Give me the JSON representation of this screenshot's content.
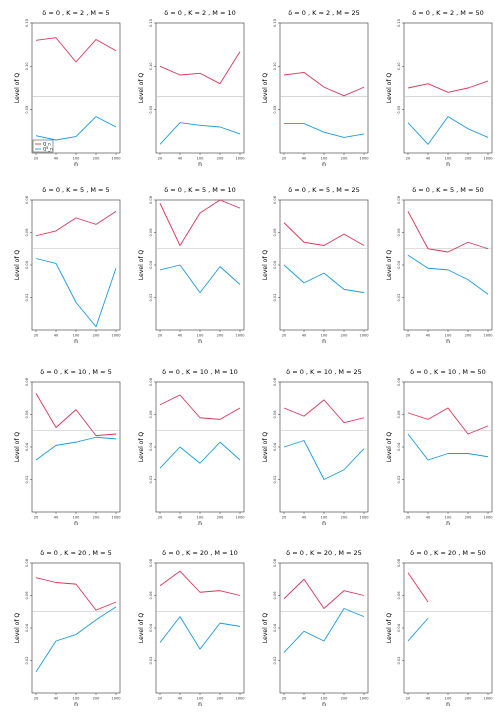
{
  "colors": {
    "Q_n": "#d8375a",
    "Q_n_star": "#1d9bdc",
    "reference": "#bdbdbd",
    "axis": "#333333"
  },
  "legend": {
    "entries": [
      "Q_n",
      "Q*_n"
    ]
  },
  "chart_data": [
    {
      "type": "line",
      "title": "δ = 0 , K = 2 , M = 5",
      "xlabel": "n",
      "ylabel": "Level of Q",
      "x": [
        20,
        40,
        100,
        200,
        1000
      ],
      "xticks": [
        "20",
        "40",
        "100",
        "200",
        "1000"
      ],
      "ylim": [
        0.0,
        0.15
      ],
      "yticks": [
        "0.05",
        "0.10",
        "0.15"
      ],
      "reference": 0.065,
      "series": [
        {
          "name": "Q_n",
          "values": [
            0.13,
            0.133,
            0.105,
            0.131,
            0.118
          ]
        },
        {
          "name": "Q*_n",
          "values": [
            0.02,
            0.015,
            0.019,
            0.042,
            0.03
          ]
        }
      ]
    },
    {
      "type": "line",
      "title": "δ = 0 , K = 2 , M = 10",
      "xlabel": "n",
      "ylabel": "Level of Q",
      "x": [
        20,
        40,
        100,
        200,
        1000
      ],
      "xticks": [
        "20",
        "40",
        "100",
        "200",
        "1000"
      ],
      "ylim": [
        0.0,
        0.15
      ],
      "yticks": [
        "0.05",
        "0.10",
        "0.15"
      ],
      "reference": 0.065,
      "series": [
        {
          "name": "Q_n",
          "values": [
            0.1,
            0.09,
            0.092,
            0.08,
            0.117
          ]
        },
        {
          "name": "Q*_n",
          "values": [
            0.01,
            0.035,
            0.032,
            0.03,
            0.022
          ]
        }
      ]
    },
    {
      "type": "line",
      "title": "δ = 0 , K = 2 , M = 25",
      "xlabel": "n",
      "ylabel": "Level of Q",
      "x": [
        20,
        40,
        100,
        200,
        1000
      ],
      "xticks": [
        "20",
        "40",
        "100",
        "200",
        "1000"
      ],
      "ylim": [
        0.0,
        0.15
      ],
      "yticks": [
        "0.05",
        "0.10",
        "0.15"
      ],
      "reference": 0.065,
      "series": [
        {
          "name": "Q_n",
          "values": [
            0.09,
            0.093,
            0.076,
            0.066,
            0.076
          ]
        },
        {
          "name": "Q*_n",
          "values": [
            0.034,
            0.034,
            0.024,
            0.018,
            0.022
          ]
        }
      ]
    },
    {
      "type": "line",
      "title": "δ = 0 , K = 2 , M = 50",
      "xlabel": "n",
      "ylabel": "Level of Q",
      "x": [
        20,
        40,
        100,
        200,
        1000
      ],
      "xticks": [
        "20",
        "40",
        "100",
        "200",
        "1000"
      ],
      "ylim": [
        0.0,
        0.15
      ],
      "yticks": [
        "0.05",
        "0.10",
        "0.15"
      ],
      "reference": 0.065,
      "series": [
        {
          "name": "Q_n",
          "values": [
            0.075,
            0.08,
            0.07,
            0.075,
            0.083
          ]
        },
        {
          "name": "Q*_n",
          "values": [
            0.035,
            0.01,
            0.042,
            0.028,
            0.018
          ]
        }
      ]
    },
    {
      "type": "line",
      "title": "δ = 0 , K = 5 , M = 5",
      "xlabel": "n",
      "ylabel": "Level of Q",
      "x": [
        20,
        40,
        100,
        200,
        1000
      ],
      "xticks": [
        "20",
        "40",
        "100",
        "200",
        "1000"
      ],
      "ylim": [
        0.0,
        0.08
      ],
      "yticks": [
        "0.02",
        "0.04",
        "0.06",
        "0.08"
      ],
      "reference": 0.05,
      "series": [
        {
          "name": "Q_n",
          "values": [
            0.058,
            0.061,
            0.069,
            0.065,
            0.073
          ]
        },
        {
          "name": "Q*_n",
          "values": [
            0.044,
            0.041,
            0.017,
            0.002,
            0.038
          ]
        }
      ]
    },
    {
      "type": "line",
      "title": "δ = 0 , K = 5 , M = 10",
      "xlabel": "n",
      "ylabel": "Level of Q",
      "x": [
        20,
        40,
        100,
        200,
        1000
      ],
      "xticks": [
        "20",
        "40",
        "100",
        "200",
        "1000"
      ],
      "ylim": [
        0.0,
        0.08
      ],
      "yticks": [
        "0.02",
        "0.04",
        "0.06",
        "0.08"
      ],
      "reference": 0.05,
      "series": [
        {
          "name": "Q_n",
          "values": [
            0.078,
            0.052,
            0.072,
            0.08,
            0.075
          ]
        },
        {
          "name": "Q*_n",
          "values": [
            0.037,
            0.04,
            0.023,
            0.039,
            0.028
          ]
        }
      ]
    },
    {
      "type": "line",
      "title": "δ = 0 , K = 5 , M = 25",
      "xlabel": "n",
      "ylabel": "Level of Q",
      "x": [
        20,
        40,
        100,
        200,
        1000
      ],
      "xticks": [
        "20",
        "40",
        "100",
        "200",
        "1000"
      ],
      "ylim": [
        0.0,
        0.08
      ],
      "yticks": [
        "0.02",
        "0.04",
        "0.06",
        "0.08"
      ],
      "reference": 0.05,
      "series": [
        {
          "name": "Q_n",
          "values": [
            0.066,
            0.054,
            0.052,
            0.059,
            0.052
          ]
        },
        {
          "name": "Q*_n",
          "values": [
            0.04,
            0.029,
            0.035,
            0.025,
            0.023
          ]
        }
      ]
    },
    {
      "type": "line",
      "title": "δ = 0 , K = 5 , M = 50",
      "xlabel": "n",
      "ylabel": "Level of Q",
      "x": [
        20,
        40,
        100,
        200,
        1000
      ],
      "xticks": [
        "20",
        "40",
        "100",
        "200",
        "1000"
      ],
      "ylim": [
        0.0,
        0.08
      ],
      "yticks": [
        "0.02",
        "0.04",
        "0.06",
        "0.08"
      ],
      "reference": 0.05,
      "series": [
        {
          "name": "Q_n",
          "values": [
            0.073,
            0.05,
            0.048,
            0.054,
            0.05
          ]
        },
        {
          "name": "Q*_n",
          "values": [
            0.046,
            0.038,
            0.037,
            0.031,
            0.022
          ]
        }
      ]
    },
    {
      "type": "line",
      "title": "δ = 0 , K = 10 , M = 5",
      "xlabel": "n",
      "ylabel": "Level of Q",
      "x": [
        20,
        40,
        100,
        200,
        1000
      ],
      "xticks": [
        "20",
        "40",
        "100",
        "200",
        "1000"
      ],
      "ylim": [
        0.0,
        0.08
      ],
      "yticks": [
        "0.02",
        "0.04",
        "0.06",
        "0.08"
      ],
      "reference": 0.05,
      "series": [
        {
          "name": "Q_n",
          "values": [
            0.073,
            0.052,
            0.063,
            0.047,
            0.048
          ]
        },
        {
          "name": "Q*_n",
          "values": [
            0.032,
            0.041,
            0.043,
            0.046,
            0.045
          ]
        }
      ]
    },
    {
      "type": "line",
      "title": "δ = 0 , K = 10 , M = 10",
      "xlabel": "n",
      "ylabel": "Level of Q",
      "x": [
        20,
        40,
        100,
        200,
        1000
      ],
      "xticks": [
        "20",
        "40",
        "100",
        "200",
        "1000"
      ],
      "ylim": [
        0.0,
        0.08
      ],
      "yticks": [
        "0.02",
        "0.04",
        "0.06",
        "0.08"
      ],
      "reference": 0.05,
      "series": [
        {
          "name": "Q_n",
          "values": [
            0.066,
            0.072,
            0.058,
            0.057,
            0.064
          ]
        },
        {
          "name": "Q*_n",
          "values": [
            0.027,
            0.04,
            0.03,
            0.043,
            0.032
          ]
        }
      ]
    },
    {
      "type": "line",
      "title": "δ = 0 , K = 10 , M = 25",
      "xlabel": "n",
      "ylabel": "Level of Q",
      "x": [
        20,
        40,
        100,
        200,
        1000
      ],
      "xticks": [
        "20",
        "40",
        "100",
        "200",
        "1000"
      ],
      "ylim": [
        0.0,
        0.08
      ],
      "yticks": [
        "0.02",
        "0.04",
        "0.06",
        "0.08"
      ],
      "reference": 0.05,
      "series": [
        {
          "name": "Q_n",
          "values": [
            0.064,
            0.059,
            0.069,
            0.055,
            0.058
          ]
        },
        {
          "name": "Q*_n",
          "values": [
            0.04,
            0.044,
            0.02,
            0.026,
            0.039
          ]
        }
      ]
    },
    {
      "type": "line",
      "title": "δ = 0 , K = 10 , M = 50",
      "xlabel": "n",
      "ylabel": "Level of Q",
      "x": [
        20,
        40,
        100,
        200,
        1000
      ],
      "xticks": [
        "20",
        "40",
        "100",
        "200",
        "1000"
      ],
      "ylim": [
        0.0,
        0.08
      ],
      "yticks": [
        "0.02",
        "0.04",
        "0.06",
        "0.08"
      ],
      "reference": 0.05,
      "series": [
        {
          "name": "Q_n",
          "values": [
            0.061,
            0.057,
            0.064,
            0.048,
            0.053
          ]
        },
        {
          "name": "Q*_n",
          "values": [
            0.048,
            0.032,
            0.036,
            0.036,
            0.034
          ]
        }
      ]
    },
    {
      "type": "line",
      "title": "δ = 0 , K = 20 , M = 5",
      "xlabel": "n",
      "ylabel": "Level of Q",
      "x": [
        20,
        40,
        100,
        200,
        1000
      ],
      "xticks": [
        "20",
        "40",
        "100",
        "200",
        "1000"
      ],
      "ylim": [
        0.0,
        0.08
      ],
      "yticks": [
        "0.02",
        "0.04",
        "0.06",
        "0.08"
      ],
      "reference": 0.05,
      "series": [
        {
          "name": "Q_n",
          "values": [
            0.071,
            0.068,
            0.067,
            0.051,
            0.056
          ]
        },
        {
          "name": "Q*_n",
          "values": [
            0.013,
            0.032,
            0.036,
            0.045,
            0.053
          ]
        }
      ]
    },
    {
      "type": "line",
      "title": "δ = 0 , K = 20 , M = 10",
      "xlabel": "n",
      "ylabel": "Level of Q",
      "x": [
        20,
        40,
        100,
        200,
        1000
      ],
      "xticks": [
        "20",
        "40",
        "100",
        "200",
        "1000"
      ],
      "ylim": [
        0.0,
        0.08
      ],
      "yticks": [
        "0.02",
        "0.04",
        "0.06",
        "0.08"
      ],
      "reference": 0.05,
      "series": [
        {
          "name": "Q_n",
          "values": [
            0.066,
            0.075,
            0.062,
            0.063,
            0.06
          ]
        },
        {
          "name": "Q*_n",
          "values": [
            0.031,
            0.047,
            0.027,
            0.043,
            0.041
          ]
        }
      ]
    },
    {
      "type": "line",
      "title": "δ = 0 , K = 20 , M = 25",
      "xlabel": "n",
      "ylabel": "Level of Q",
      "x": [
        20,
        40,
        100,
        200,
        1000
      ],
      "xticks": [
        "20",
        "40",
        "100",
        "200",
        "1000"
      ],
      "ylim": [
        0.0,
        0.08
      ],
      "yticks": [
        "0.02",
        "0.04",
        "0.06",
        "0.08"
      ],
      "reference": 0.05,
      "series": [
        {
          "name": "Q_n",
          "values": [
            0.058,
            0.07,
            0.052,
            0.063,
            0.06
          ]
        },
        {
          "name": "Q*_n",
          "values": [
            0.025,
            0.038,
            0.032,
            0.052,
            0.047
          ]
        }
      ]
    },
    {
      "type": "line",
      "title": "δ = 0 , K = 20 , M = 50",
      "xlabel": "n",
      "ylabel": "Level of Q",
      "x": [
        20,
        40,
        100,
        200,
        1000
      ],
      "xticks": [
        "20",
        "40",
        "100",
        "200",
        "1000"
      ],
      "ylim": [
        0.0,
        0.08
      ],
      "yticks": [
        "0.02",
        "0.04",
        "0.06",
        "0.08"
      ],
      "reference": 0.05,
      "series": [
        {
          "name": "Q_n",
          "values": [
            0.074,
            0.056,
            null,
            null,
            null
          ]
        },
        {
          "name": "Q*_n",
          "values": [
            0.032,
            0.046,
            null,
            null,
            null
          ]
        }
      ]
    }
  ]
}
